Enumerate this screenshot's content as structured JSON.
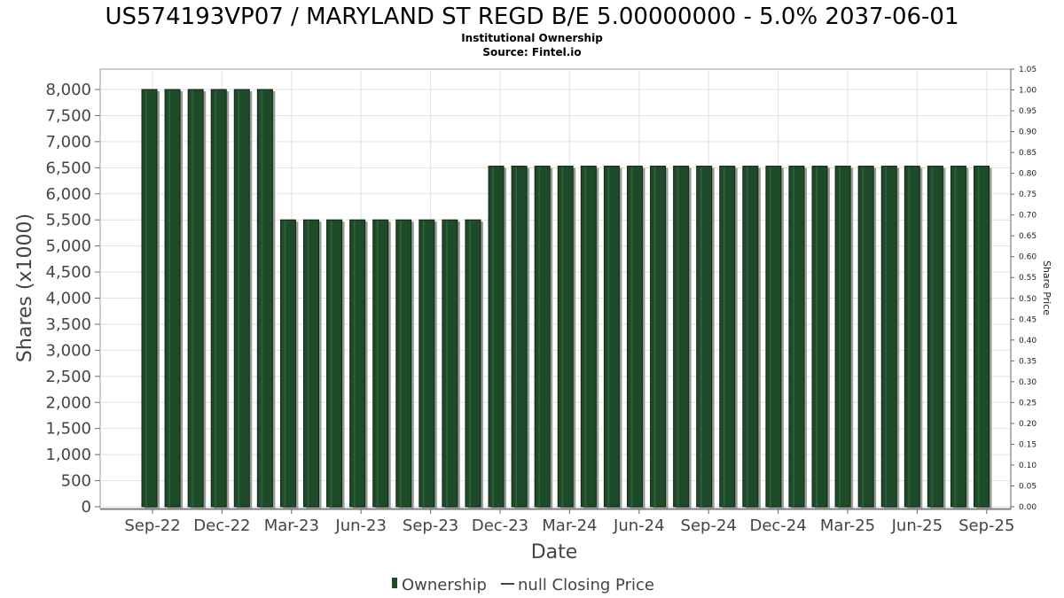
{
  "chart_data": {
    "type": "bar",
    "title": "US574193VP07 / MARYLAND ST REGD B/E 5.00000000 - 5.0% 2037-06-01",
    "subtitle": "Institutional Ownership",
    "source": "Source: Fintel.io",
    "xlabel": "Date",
    "ylabel": "Shares (x1000)",
    "y2label": "Share Price",
    "ylim": [
      0,
      8000
    ],
    "y2lim": [
      0,
      1.05
    ],
    "yticks": [
      "0",
      "500",
      "1,000",
      "1,500",
      "2,000",
      "2,500",
      "3,000",
      "3,500",
      "4,000",
      "4,500",
      "5,000",
      "5,500",
      "6,000",
      "6,500",
      "7,000",
      "7,500",
      "8,000"
    ],
    "y2ticks": [
      "0.00",
      "0.05",
      "0.10",
      "0.15",
      "0.20",
      "0.25",
      "0.30",
      "0.35",
      "0.40",
      "0.45",
      "0.50",
      "0.55",
      "0.60",
      "0.65",
      "0.70",
      "0.75",
      "0.80",
      "0.85",
      "0.90",
      "0.95",
      "1.00",
      "1.05"
    ],
    "xticks": [
      "Sep-22",
      "Dec-22",
      "Mar-23",
      "Jun-23",
      "Sep-23",
      "Dec-23",
      "Mar-24",
      "Jun-24",
      "Sep-24",
      "Dec-24",
      "Mar-25",
      "Jun-25",
      "Sep-25"
    ],
    "series": [
      {
        "name": "Ownership",
        "color": "#1e4a2a",
        "values": [
          8000,
          8000,
          8000,
          8000,
          8000,
          8000,
          5500,
          5500,
          5500,
          5500,
          5500,
          5500,
          5500,
          5500,
          5500,
          6530,
          6530,
          6530,
          6530,
          6530,
          6530,
          6530,
          6530,
          6530,
          6530,
          6530,
          6530,
          6530,
          6530,
          6530,
          6530,
          6530,
          6530,
          6530,
          6530,
          6530,
          6530
        ]
      }
    ],
    "legend": {
      "position": "bottom",
      "items": [
        "Ownership",
        "null Closing Price"
      ]
    },
    "grid": true
  }
}
